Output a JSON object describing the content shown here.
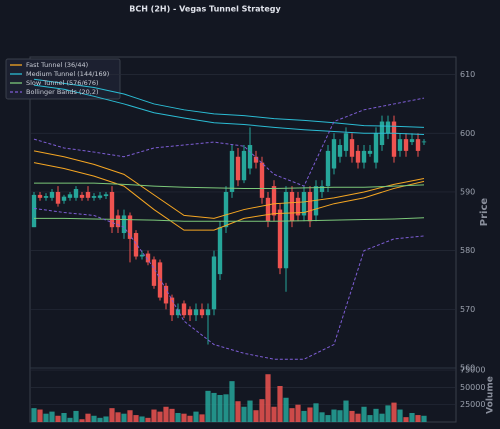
{
  "chart_data": {
    "type": "candlestick",
    "title": "BCH (2H) - Vegas Tunnel Strategy",
    "y_label": "Price",
    "y2_label": "Volume",
    "up_color": "#26a69a",
    "down_color": "#ef5350",
    "ylim": [
      560,
      613
    ],
    "yticks": [
      560,
      570,
      580,
      590,
      600,
      610
    ],
    "volume_lim": [
      0,
      78000
    ],
    "volume_ticks": [
      25000,
      50000,
      75000
    ],
    "grid": true,
    "legend": "upper left",
    "open": [
      584,
      589.5,
      589,
      589,
      590,
      588.5,
      589,
      589,
      589.5,
      590,
      589,
      589,
      589.3,
      590,
      586,
      583,
      586,
      583,
      579,
      579.5,
      578.5,
      578,
      574,
      572,
      569,
      571,
      570,
      569,
      570,
      569,
      570,
      576,
      584,
      590,
      596,
      592,
      594,
      596,
      595,
      589,
      591,
      587,
      577,
      590,
      589,
      586,
      590,
      586,
      590,
      591,
      594,
      596,
      597,
      599,
      597,
      595,
      596.5,
      595,
      598,
      600,
      602,
      597,
      599,
      598.5,
      599,
      598.5
    ],
    "high": [
      590,
      590,
      589.8,
      590.5,
      591,
      589.5,
      590,
      591,
      590,
      591,
      589.8,
      590,
      590,
      591,
      587,
      587,
      586.5,
      583.5,
      580,
      580,
      579,
      578.5,
      574.5,
      572.5,
      571,
      571.5,
      570.5,
      571,
      571,
      571,
      580,
      585,
      591,
      598,
      597.5,
      598,
      601,
      597,
      596,
      590,
      592,
      588,
      591,
      591,
      590,
      591,
      591,
      592,
      592,
      598,
      600,
      599,
      601,
      600,
      598,
      598,
      598,
      601,
      603,
      603,
      603,
      600,
      600,
      600,
      600,
      599
    ],
    "low": [
      584,
      588.5,
      588.5,
      588.5,
      587.5,
      588,
      588.5,
      588.5,
      588.5,
      588.5,
      588.5,
      588.7,
      588.8,
      583,
      583,
      582,
      578,
      578.5,
      578.5,
      577.5,
      573.5,
      571.5,
      570,
      568,
      568.5,
      568.5,
      568,
      568,
      568.5,
      564,
      569,
      575,
      583,
      589,
      591,
      591.5,
      593,
      594,
      588,
      584,
      585,
      576,
      573,
      584,
      585,
      585,
      584,
      585,
      589,
      590,
      593,
      595,
      596,
      595,
      594,
      594,
      596,
      594,
      597,
      599,
      595,
      596,
      596,
      598,
      596,
      598
    ],
    "close": [
      589.5,
      589,
      589.3,
      590,
      588,
      589.2,
      589.6,
      590.5,
      589,
      589,
      589.3,
      589.4,
      589.6,
      584,
      584,
      586,
      582,
      579,
      579.3,
      578,
      574,
      572,
      571,
      569,
      570,
      569,
      569,
      570,
      569,
      570,
      579,
      584,
      590,
      597,
      592,
      597,
      598,
      595,
      589,
      585,
      586,
      577,
      590,
      585,
      586,
      590,
      585,
      591,
      591,
      597,
      599,
      598,
      600,
      596,
      595,
      597,
      597,
      600,
      602,
      602,
      596,
      599,
      597,
      599,
      597,
      598.6
    ],
    "volume": [
      20000,
      18000,
      12000,
      15000,
      9000,
      13000,
      6000,
      16000,
      4000,
      12000,
      9000,
      6000,
      8000,
      20000,
      14000,
      12000,
      17000,
      10000,
      8000,
      6000,
      18000,
      15000,
      22000,
      19000,
      13000,
      12000,
      9000,
      15000,
      11000,
      45000,
      42000,
      39000,
      40000,
      59000,
      30000,
      22000,
      31000,
      17000,
      33000,
      69000,
      22000,
      52000,
      35000,
      20000,
      25000,
      16000,
      21000,
      27000,
      14000,
      10000,
      18000,
      17000,
      31000,
      16000,
      12000,
      22000,
      10000,
      19000,
      12000,
      24000,
      28000,
      18000,
      7000,
      13000,
      10000,
      9000
    ],
    "line_x": [
      0,
      5,
      10,
      15,
      20,
      25,
      30,
      35,
      40,
      45,
      50,
      55,
      60,
      65
    ],
    "lines": [
      {
        "name": "Fast Tunnel (36/44)",
        "color": "#f5a623",
        "dashed": false,
        "upper": [
          597,
          596,
          594.7,
          593,
          589.5,
          586,
          585.5,
          587,
          588,
          588.3,
          589,
          590,
          591.3,
          592.3
        ],
        "lower": [
          595,
          594,
          592.7,
          591,
          587,
          583.5,
          583.5,
          585.5,
          586.3,
          586.5,
          588,
          589,
          590.6,
          591.8
        ]
      },
      {
        "name": "Medium Tunnel (144/169)",
        "color": "#2bbcd4",
        "dashed": false,
        "upper": [
          609.2,
          608.5,
          607.8,
          606.7,
          605,
          604,
          603.3,
          603,
          602.5,
          602.2,
          601.8,
          601.3,
          601.2,
          601
        ],
        "lower": [
          608.2,
          607.5,
          606.3,
          605,
          603.5,
          602.6,
          601.8,
          601.5,
          601,
          600.6,
          600.3,
          600,
          600,
          599.8
        ]
      },
      {
        "name": "Slow Tunnel (576/676)",
        "color": "#7cc87a",
        "dashed": false,
        "upper": [
          591.5,
          591.5,
          591.5,
          591.3,
          591,
          590.8,
          590.7,
          590.6,
          590.6,
          590.7,
          590.8,
          590.8,
          591,
          591.2
        ],
        "lower": [
          585.5,
          585.5,
          585.4,
          585.3,
          585.2,
          585,
          585,
          585,
          585,
          585.1,
          585.2,
          585.3,
          585.4,
          585.6
        ]
      },
      {
        "name": "Bollinger Bands (20,2)",
        "color": "#7e5ed6",
        "dashed": true,
        "upper": [
          599,
          597.5,
          596.8,
          596,
          597.5,
          598,
          598.5,
          597.8,
          593,
          591,
          602,
          604,
          605,
          606
        ],
        "lower": [
          587.2,
          586.5,
          586,
          584,
          577,
          568,
          564,
          562.5,
          561.5,
          561.5,
          564,
          580,
          582,
          582.5
        ]
      }
    ]
  }
}
